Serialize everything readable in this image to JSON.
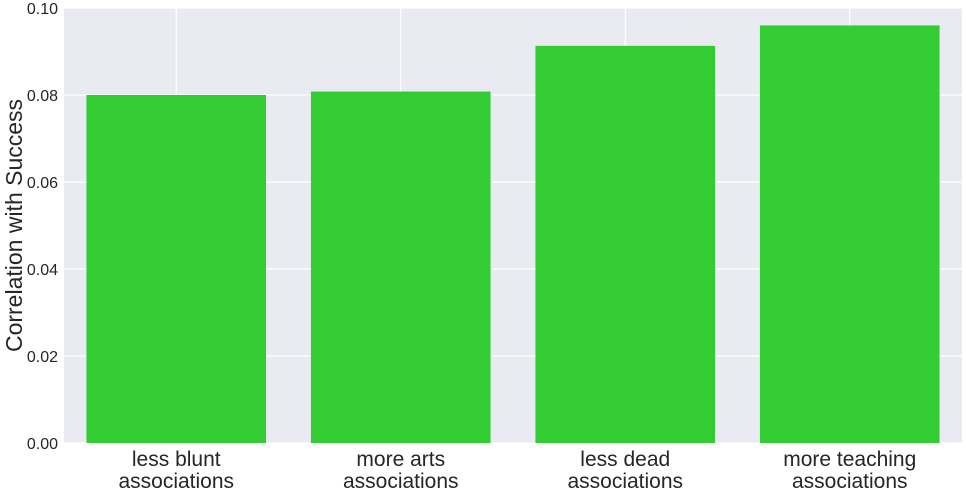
{
  "chart_data": {
    "type": "bar",
    "title": "",
    "xlabel": "",
    "ylabel": "Correlation with Success",
    "categories": [
      [
        "less blunt",
        "associations"
      ],
      [
        "more arts",
        "associations"
      ],
      [
        "less dead",
        "associations"
      ],
      [
        "more teaching",
        "associations"
      ]
    ],
    "values": [
      0.08,
      0.0808,
      0.0913,
      0.096
    ],
    "ylim": [
      0,
      0.1
    ],
    "yticks": [
      "0.00",
      "0.02",
      "0.04",
      "0.06",
      "0.08",
      "0.10"
    ],
    "grid": true,
    "bar_color": "#33cc33",
    "background_color": "#e9eaf2",
    "grid_color": "#ffffff"
  }
}
